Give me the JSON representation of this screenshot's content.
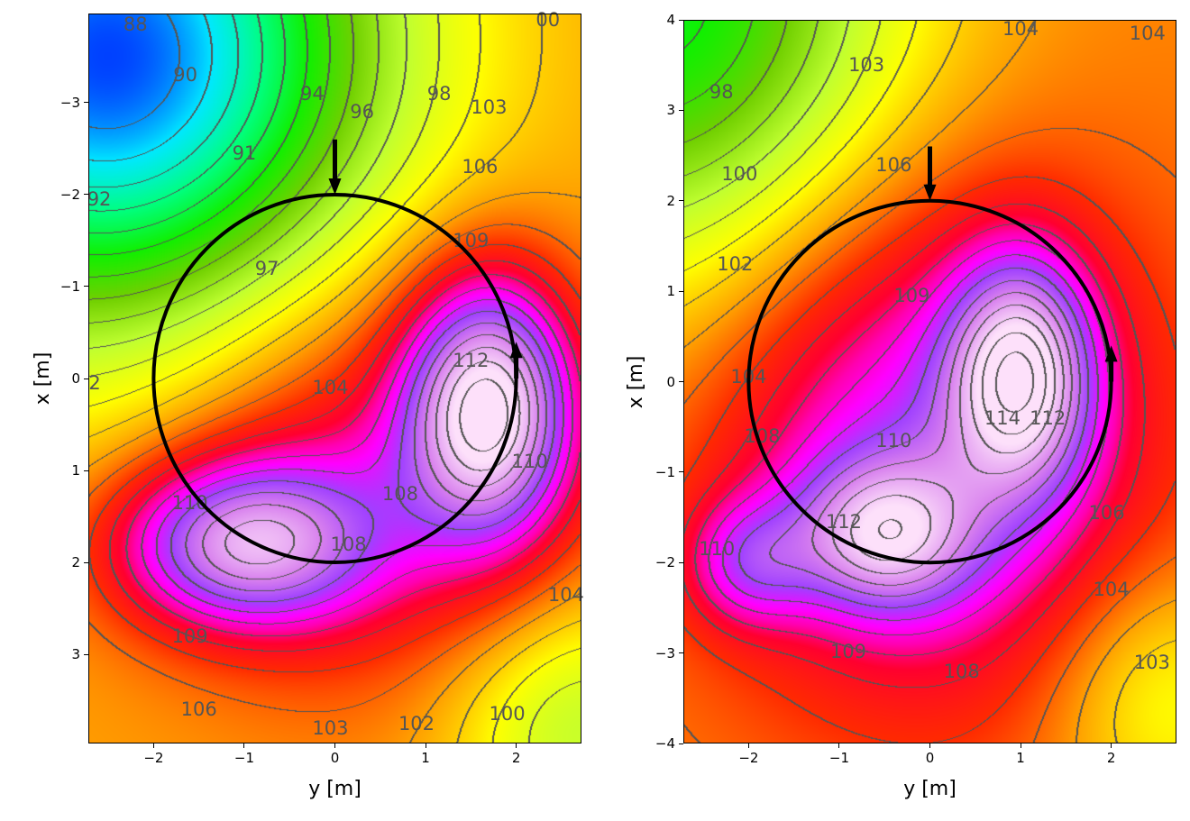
{
  "chart_data": [
    {
      "type": "heatmap",
      "subtype": "filled contour with contour lines",
      "xlabel": "y [m]",
      "ylabel": "x [m]",
      "xlim": [
        -2.72,
        2.72
      ],
      "ylim": [
        -3.97,
        3.97
      ],
      "y_inverted": true,
      "xticks": [
        -2,
        -1,
        0,
        1,
        2
      ],
      "yticks": [
        -3,
        -2,
        -1,
        0,
        1,
        2,
        3
      ],
      "contour_step": 1,
      "field": {
        "base": 103,
        "bumps": [
          {
            "y": -2.5,
            "x": -3.5,
            "amp": -14,
            "sy": 2.1,
            "sx": 2.1
          },
          {
            "y": 1.7,
            "x": 0.3,
            "amp": 10.5,
            "sy": 0.65,
            "sx": 1.0
          },
          {
            "y": -1.0,
            "x": 1.8,
            "amp": 8.5,
            "sy": 1.0,
            "sx": 0.65
          },
          {
            "y": 0.4,
            "x": 1.0,
            "amp": 4,
            "sy": 1.6,
            "sx": 1.6
          },
          {
            "y": 2.7,
            "x": 3.8,
            "amp": -4,
            "sy": 1.0,
            "sx": 1.0
          }
        ]
      },
      "contour_labels": [
        {
          "text": "88",
          "y": -2.2,
          "x": -3.85
        },
        {
          "text": "90",
          "y": -1.65,
          "x": -3.3
        },
        {
          "text": "91",
          "y": -1.0,
          "x": -2.45
        },
        {
          "text": "92",
          "y": -2.6,
          "x": -1.95
        },
        {
          "text": "94",
          "y": -0.25,
          "x": -3.1
        },
        {
          "text": "96",
          "y": 0.3,
          "x": -2.9
        },
        {
          "text": "98",
          "y": 1.15,
          "x": -3.1
        },
        {
          "text": "103",
          "y": 1.7,
          "x": -2.95
        },
        {
          "text": "106",
          "y": 1.6,
          "x": -2.3
        },
        {
          "text": "109",
          "y": 1.5,
          "x": -1.5
        },
        {
          "text": "97",
          "y": -0.75,
          "x": -1.2
        },
        {
          "text": "104",
          "y": -0.05,
          "x": 0.1
        },
        {
          "text": "112",
          "y": 1.5,
          "x": -0.2
        },
        {
          "text": "110",
          "y": 2.15,
          "x": 0.9
        },
        {
          "text": "110",
          "y": -1.6,
          "x": 1.35
        },
        {
          "text": "108",
          "y": 0.72,
          "x": 1.25
        },
        {
          "text": "108",
          "y": 0.15,
          "x": 1.8
        },
        {
          "text": "109",
          "y": -1.6,
          "x": 2.8
        },
        {
          "text": "106",
          "y": -1.5,
          "x": 3.6
        },
        {
          "text": "103",
          "y": -0.05,
          "x": 3.8
        },
        {
          "text": "102",
          "y": 0.9,
          "x": 3.75
        },
        {
          "text": "100",
          "y": 1.9,
          "x": 3.65
        },
        {
          "text": "104",
          "y": 2.55,
          "x": 2.35
        },
        {
          "text": "2",
          "y": -2.65,
          "x": 0.05
        },
        {
          "text": "00",
          "y": 2.35,
          "x": -3.9
        }
      ],
      "circle": {
        "center_y": 0,
        "center_x": 0,
        "radius": 2
      },
      "arrows": [
        {
          "y": 0,
          "x_from": -2.6,
          "x_to": -2.0,
          "direction": "down"
        },
        {
          "y": 2,
          "x_from": 0.0,
          "x_to": -0.4,
          "direction": "up"
        }
      ]
    },
    {
      "type": "heatmap",
      "subtype": "filled contour with contour lines",
      "xlabel": "y [m]",
      "ylabel": "x [m]",
      "xlim": [
        -2.72,
        2.72
      ],
      "ylim": [
        -4,
        4
      ],
      "y_inverted": false,
      "xticks": [
        -2,
        -1,
        0,
        1,
        2
      ],
      "yticks": [
        -4,
        -3,
        -2,
        -1,
        0,
        1,
        2,
        3,
        4
      ],
      "contour_step": 1,
      "field": {
        "base": 103.5,
        "bumps": [
          {
            "y": -3.0,
            "x": 4.2,
            "amp": -9,
            "sy": 1.9,
            "sx": 2.2
          },
          {
            "y": 1.0,
            "x": 0.1,
            "amp": 8.5,
            "sy": 0.55,
            "sx": 0.9
          },
          {
            "y": -0.5,
            "x": -1.7,
            "amp": 6.5,
            "sy": 0.7,
            "sx": 0.6
          },
          {
            "y": -2.0,
            "x": -2.0,
            "amp": 4,
            "sy": 0.5,
            "sx": 0.5
          },
          {
            "y": 0.0,
            "x": -0.7,
            "amp": 6,
            "sy": 1.7,
            "sx": 2.0
          },
          {
            "y": 2.6,
            "x": -3.5,
            "amp": -3,
            "sy": 0.9,
            "sx": 1.0
          }
        ]
      },
      "contour_labels": [
        {
          "text": "98",
          "y": -2.3,
          "x": 3.2
        },
        {
          "text": "100",
          "y": -2.1,
          "x": 2.3
        },
        {
          "text": "102",
          "y": -2.15,
          "x": 1.3
        },
        {
          "text": "103",
          "y": -0.7,
          "x": 3.5
        },
        {
          "text": "104",
          "y": 1.0,
          "x": 3.9
        },
        {
          "text": "104",
          "y": 2.4,
          "x": 3.85
        },
        {
          "text": "106",
          "y": -0.4,
          "x": 2.4
        },
        {
          "text": "109",
          "y": -0.2,
          "x": 0.95
        },
        {
          "text": "104",
          "y": -2.0,
          "x": 0.05
        },
        {
          "text": "108",
          "y": -1.85,
          "x": -0.6
        },
        {
          "text": "110",
          "y": -0.4,
          "x": -0.65
        },
        {
          "text": "114",
          "y": 0.8,
          "x": -0.4
        },
        {
          "text": "112",
          "y": 1.3,
          "x": -0.4
        },
        {
          "text": "112",
          "y": -0.95,
          "x": -1.55
        },
        {
          "text": "110",
          "y": -2.35,
          "x": -1.85
        },
        {
          "text": "106",
          "y": 1.95,
          "x": -1.45
        },
        {
          "text": "104",
          "y": 2.0,
          "x": -2.3
        },
        {
          "text": "109",
          "y": -0.9,
          "x": -2.98
        },
        {
          "text": "108",
          "y": 0.35,
          "x": -3.2
        },
        {
          "text": "103",
          "y": 2.45,
          "x": -3.1
        }
      ],
      "circle": {
        "center_y": 0,
        "center_x": 0,
        "radius": 2
      },
      "arrows": [
        {
          "y": 0,
          "x_from": 2.6,
          "x_to": 2.0,
          "direction": "down"
        },
        {
          "y": 2,
          "x_from": 0.0,
          "x_to": 0.4,
          "direction": "up"
        }
      ]
    }
  ],
  "colormap": [
    [
      87.5,
      "#001a8c"
    ],
    [
      89,
      "#0040ff"
    ],
    [
      91,
      "#00e8ff"
    ],
    [
      93,
      "#00ff80"
    ],
    [
      95,
      "#10f000"
    ],
    [
      97,
      "#70d000"
    ],
    [
      99,
      "#c0ff30"
    ],
    [
      101,
      "#ffff00"
    ],
    [
      103,
      "#ffa000"
    ],
    [
      105,
      "#ff2a00"
    ],
    [
      106.5,
      "#ff0030"
    ],
    [
      107.5,
      "#ff00b0"
    ],
    [
      108.5,
      "#ff00ff"
    ],
    [
      110,
      "#a040ff"
    ],
    [
      112,
      "#d880ee"
    ],
    [
      114.5,
      "#fde0fa"
    ]
  ],
  "contour_color": "#555555"
}
